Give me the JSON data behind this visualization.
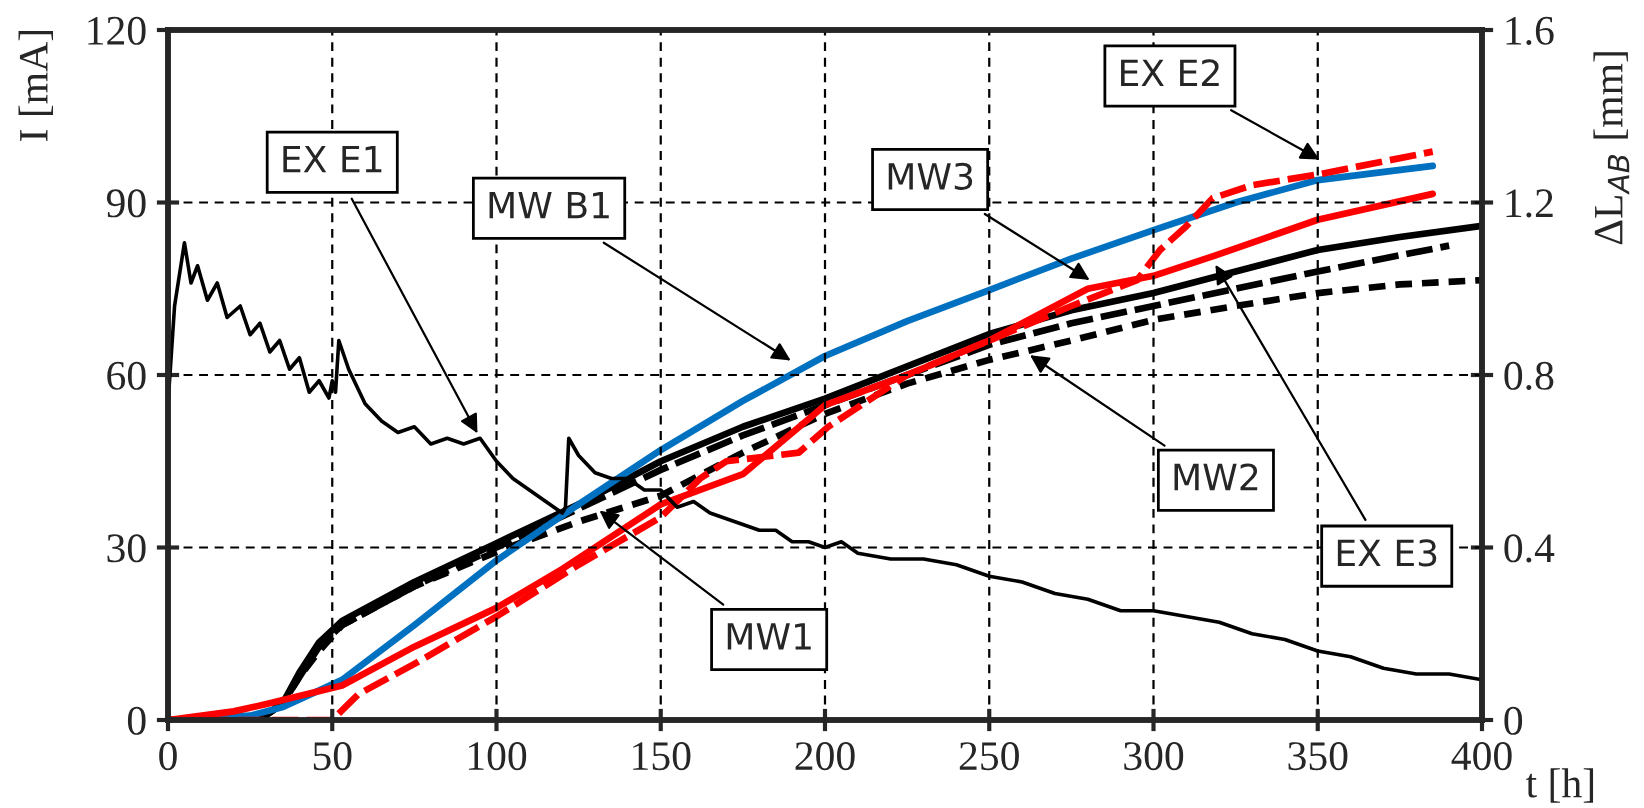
{
  "chart_data": {
    "type": "line",
    "xlabel": "t [h]",
    "ylabel": "I [mA]",
    "y2label": "ΔL$_{AB}$ [mm]",
    "xlim": [
      0,
      400
    ],
    "xticks": [
      0,
      50,
      100,
      150,
      200,
      250,
      300,
      350,
      400
    ],
    "ylim": [
      0,
      120
    ],
    "yticks": [
      0,
      30,
      60,
      90,
      120
    ],
    "y2lim": [
      0,
      1.6
    ],
    "y2ticks": [
      {
        "value": 0,
        "label": "0"
      },
      {
        "value": 0.4,
        "label": "0.4"
      },
      {
        "value": 0.8,
        "label": "0.8"
      },
      {
        "value": 1.2,
        "label": "1.2"
      },
      {
        "value": 1.6,
        "label": "1.6"
      }
    ],
    "grid": true,
    "legend": false,
    "marker": "none",
    "series": [
      {
        "color": "#000000",
        "line_style": "solid",
        "x": [
          0,
          2,
          5,
          7,
          9,
          12,
          15,
          18,
          22,
          25,
          28,
          31,
          34,
          37,
          40,
          43,
          46,
          49,
          50,
          51,
          52,
          55,
          60,
          65,
          70,
          75,
          80,
          85,
          90,
          95,
          100,
          105,
          110,
          115,
          120,
          121,
          122,
          125,
          130,
          135,
          140,
          145,
          150,
          155,
          160,
          165,
          170,
          175,
          180,
          185,
          190,
          195,
          200,
          205,
          210,
          220,
          230,
          240,
          250,
          260,
          270,
          280,
          290,
          300,
          310,
          320,
          330,
          340,
          350,
          360,
          370,
          380,
          390,
          400
        ],
        "values": [
          55,
          72,
          83,
          76,
          79,
          73,
          76,
          70,
          72,
          67,
          69,
          64,
          66,
          61,
          63,
          57,
          59,
          56,
          59,
          57,
          66,
          61,
          55,
          52,
          50,
          51,
          48,
          49,
          48,
          49,
          45,
          42,
          40,
          38,
          36,
          37,
          49,
          46,
          43,
          42,
          42,
          40,
          40,
          37,
          38,
          36,
          35,
          34,
          33,
          33,
          31,
          31,
          30,
          31,
          29,
          28,
          28,
          27,
          25,
          24,
          22,
          21,
          19,
          19,
          18,
          17,
          15,
          14,
          12,
          11,
          9,
          8,
          8,
          7
        ]
      },
      {
        "color": "#000000",
        "line_style": "solid",
        "axis": "y2",
        "x": [
          0,
          28,
          35,
          40,
          46,
          53,
          75,
          100,
          125,
          150,
          175,
          200,
          225,
          250,
          275,
          300,
          325,
          350,
          375,
          400
        ],
        "values": [
          0,
          0,
          0.04,
          0.11,
          0.18,
          0.23,
          0.32,
          0.41,
          0.5,
          0.6,
          0.68,
          0.745,
          0.82,
          0.895,
          0.95,
          0.99,
          1.04,
          1.09,
          1.12,
          1.146
        ]
      },
      {
        "color": "#000000",
        "line_style": "dashed",
        "axis": "y2",
        "x": [
          0,
          28,
          35,
          40,
          46,
          53,
          75,
          100,
          125,
          150,
          175,
          200,
          225,
          250,
          275,
          300,
          325,
          350,
          390
        ],
        "values": [
          0,
          0,
          0.04,
          0.1,
          0.17,
          0.22,
          0.31,
          0.4,
          0.49,
          0.58,
          0.66,
          0.73,
          0.8,
          0.87,
          0.92,
          0.96,
          1.0,
          1.04,
          1.1
        ]
      },
      {
        "color": "#000000",
        "line_style": "dotted",
        "axis": "y2",
        "x": [
          0,
          28,
          35,
          40,
          46,
          53,
          75,
          100,
          125,
          150,
          175,
          200,
          225,
          250,
          275,
          300,
          325,
          350,
          375,
          400
        ],
        "values": [
          0,
          0,
          0.04,
          0.1,
          0.16,
          0.22,
          0.31,
          0.39,
          0.46,
          0.52,
          0.62,
          0.71,
          0.78,
          0.835,
          0.88,
          0.928,
          0.96,
          0.99,
          1.01,
          1.02
        ]
      },
      {
        "color": "#0070c0",
        "line_style": "solid",
        "axis": "y2",
        "x": [
          0,
          25,
          35,
          53,
          75,
          100,
          125,
          150,
          175,
          200,
          225,
          250,
          275,
          300,
          325,
          350,
          385
        ],
        "values": [
          0,
          0.01,
          0.03,
          0.093,
          0.22,
          0.37,
          0.5,
          0.626,
          0.74,
          0.844,
          0.925,
          0.997,
          1.07,
          1.136,
          1.2,
          1.252,
          1.285
        ]
      },
      {
        "color": "#ff0000",
        "line_style": "solid",
        "axis": "y2",
        "x": [
          0,
          20,
          30,
          53,
          75,
          100,
          120,
          150,
          175,
          200,
          225,
          250,
          280,
          300,
          318,
          350,
          385
        ],
        "values": [
          0,
          0.02,
          0.037,
          0.08,
          0.17,
          0.26,
          0.35,
          0.5,
          0.57,
          0.73,
          0.8,
          0.88,
          1.0,
          1.03,
          1.075,
          1.16,
          1.22
        ]
      },
      {
        "color": "#ff0000",
        "line_style": "dashed",
        "axis": "y2",
        "x": [
          0,
          50,
          58,
          75,
          100,
          125,
          150,
          162,
          170,
          192,
          201,
          225,
          250,
          275,
          295,
          302,
          310,
          318,
          330,
          350,
          385
        ],
        "values": [
          0,
          0,
          0.06,
          0.13,
          0.24,
          0.36,
          0.47,
          0.56,
          0.6,
          0.62,
          0.68,
          0.8,
          0.88,
          0.96,
          1.02,
          1.09,
          1.145,
          1.21,
          1.24,
          1.265,
          1.318
        ]
      }
    ],
    "annotations": [
      {
        "text": "EX E1",
        "x": 95,
        "y": 49
      },
      {
        "text": "MW B1",
        "x": 191,
        "y": 62
      },
      {
        "text": "MW1",
        "x": 130,
        "y": 37
      },
      {
        "text": "MW3",
        "x": 282,
        "y": 76
      },
      {
        "text": "EX E2",
        "x": 352,
        "y": 97
      },
      {
        "text": "EX E3",
        "x": 318,
        "y": 80
      },
      {
        "text": "MW2",
        "x": 261,
        "y": 64
      }
    ]
  }
}
